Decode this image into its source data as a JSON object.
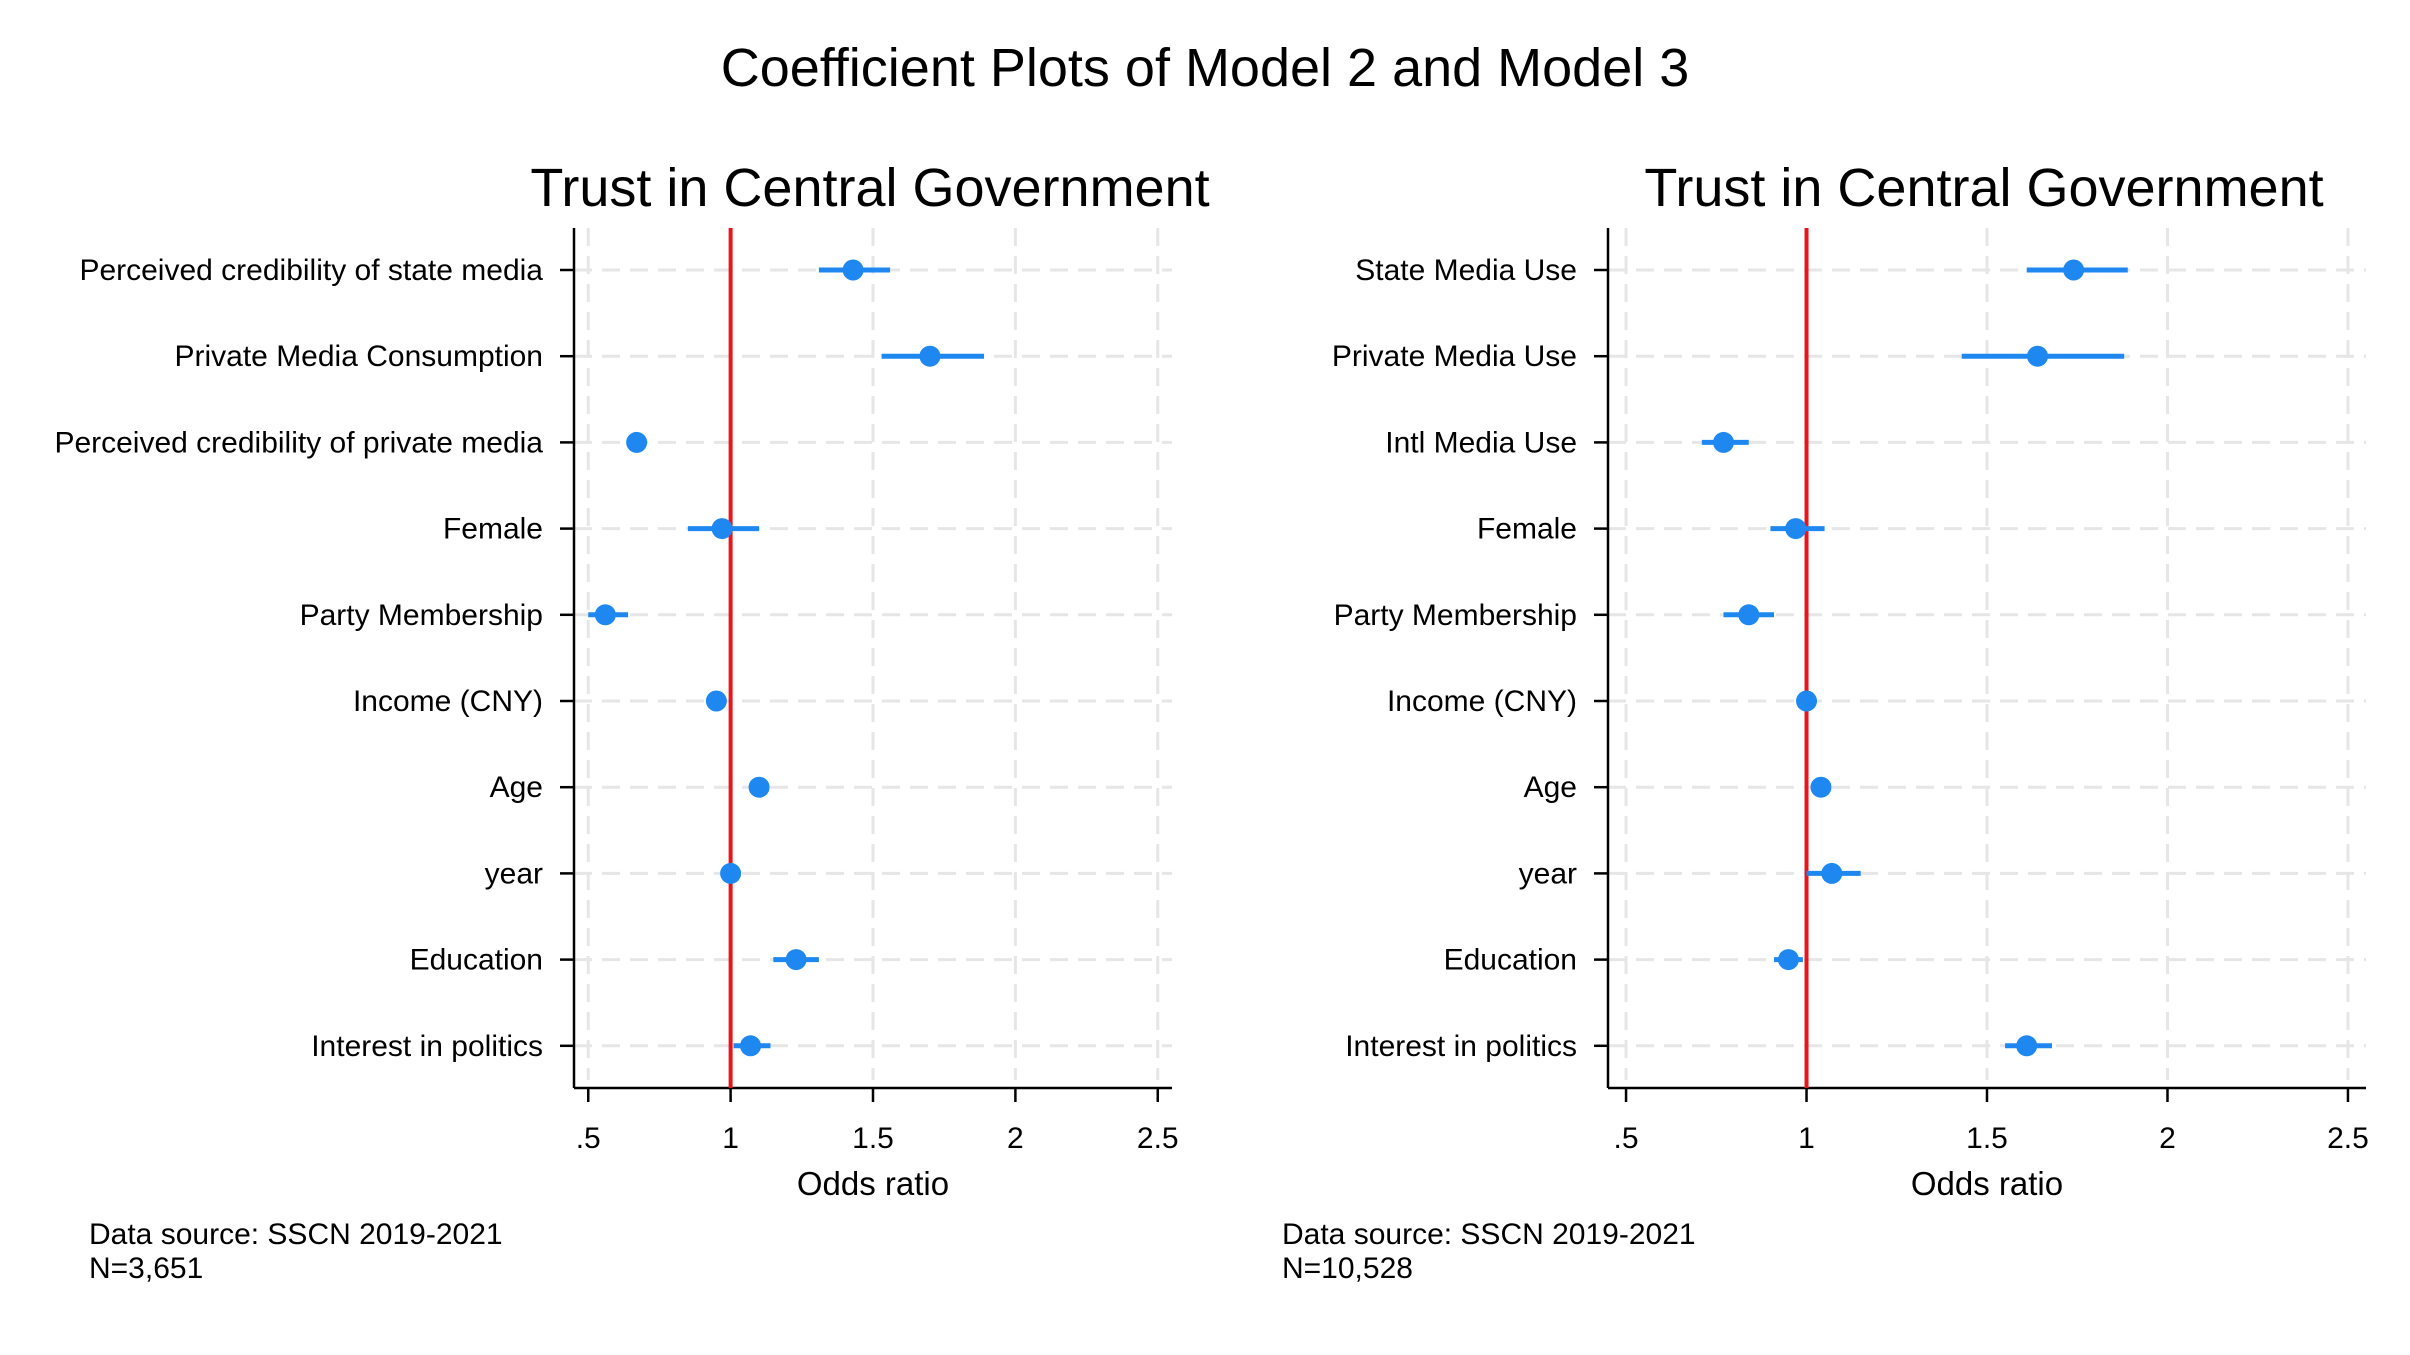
{
  "figure": {
    "title": "Coefficient Plots of Model 2 and Model 3"
  },
  "colors": {
    "marker": "#1e88f0",
    "reference_line": "#e8161b",
    "gridline": "#e6e6e6",
    "axis": "#000000"
  },
  "chart_data": [
    {
      "type": "scatter",
      "subtype": "coefficient-plot",
      "title": "Trust in Central Government",
      "xlabel": "Odds ratio",
      "ylabel": "",
      "xlim": [
        0.45,
        2.55
      ],
      "xticks": [
        0.5,
        1,
        1.5,
        2,
        2.5
      ],
      "xtick_labels": [
        ".5",
        "1",
        "1.5",
        "2",
        "2.5"
      ],
      "reference_line": 1,
      "grid": true,
      "note": [
        "Data source: SSCN 2019-2021",
        "N=3,651"
      ],
      "categories": [
        "Perceived credibility of state media",
        "Private Media Consumption",
        "Perceived credibility of private media",
        "Female",
        "Party Membership",
        "Income (CNY)",
        "Age",
        "year",
        "Education",
        "Interest in politics"
      ],
      "values": [
        1.43,
        1.7,
        0.67,
        0.97,
        0.56,
        0.95,
        1.1,
        1.0,
        1.23,
        1.07
      ],
      "ci_lower": [
        1.31,
        1.53,
        0.64,
        0.85,
        0.5,
        0.93,
        1.08,
        0.99,
        1.15,
        1.01
      ],
      "ci_upper": [
        1.56,
        1.89,
        0.7,
        1.1,
        0.64,
        0.97,
        1.12,
        1.01,
        1.31,
        1.14
      ]
    },
    {
      "type": "scatter",
      "subtype": "coefficient-plot",
      "title": "Trust in Central Government",
      "xlabel": "Odds ratio",
      "ylabel": "",
      "xlim": [
        0.45,
        2.55
      ],
      "xticks": [
        0.5,
        1,
        1.5,
        2,
        2.5
      ],
      "xtick_labels": [
        ".5",
        "1",
        "1.5",
        "2",
        "2.5"
      ],
      "reference_line": 1,
      "grid": true,
      "note": [
        "Data source: SSCN 2019-2021",
        "N=10,528"
      ],
      "categories": [
        "State Media Use",
        "Private Media Use",
        "Intl Media Use",
        "Female",
        "Party Membership",
        "Income (CNY)",
        "Age",
        "year",
        "Education",
        "Interest in politics"
      ],
      "values": [
        1.74,
        1.64,
        0.77,
        0.97,
        0.84,
        1.0,
        1.04,
        1.07,
        0.95,
        1.61
      ],
      "ci_lower": [
        1.61,
        1.43,
        0.71,
        0.9,
        0.77,
        0.99,
        1.02,
        1.0,
        0.91,
        1.55
      ],
      "ci_upper": [
        1.89,
        1.88,
        0.84,
        1.05,
        0.91,
        1.01,
        1.06,
        1.15,
        0.99,
        1.68
      ]
    }
  ]
}
